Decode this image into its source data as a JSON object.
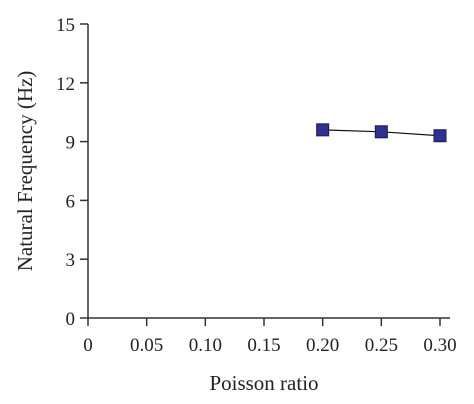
{
  "chart_data": {
    "type": "line",
    "title": "",
    "xlabel": "Poisson ratio",
    "ylabel": "Natural Frequency (Hz)",
    "xlim": [
      0,
      0.3
    ],
    "ylim": [
      0,
      15
    ],
    "x_ticks": [
      "0",
      "0.05",
      "0.10",
      "0.15",
      "0.20",
      "0.25",
      "0.30"
    ],
    "x_tick_values": [
      0,
      0.05,
      0.1,
      0.15,
      0.2,
      0.25,
      0.3
    ],
    "y_ticks": [
      "0",
      "3",
      "6",
      "9",
      "12",
      "15"
    ],
    "y_tick_values": [
      0,
      3,
      6,
      9,
      12,
      15
    ],
    "grid": false,
    "series": [
      {
        "marker": "square",
        "color": "#2e3192",
        "x": [
          0.2,
          0.25,
          0.3
        ],
        "y": [
          9.6,
          9.5,
          9.3
        ]
      }
    ]
  }
}
